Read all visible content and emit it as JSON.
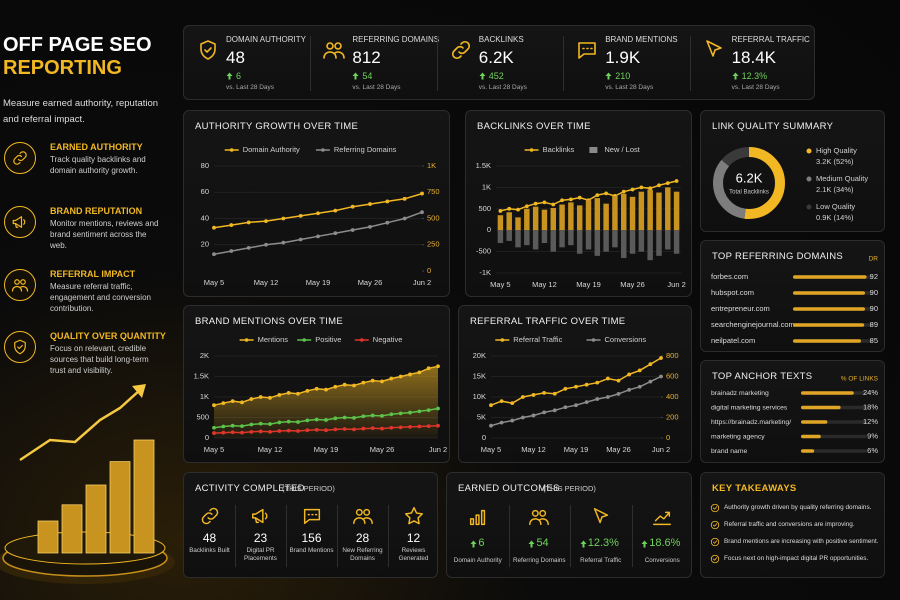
{
  "sidebar": {
    "title_line1": "OFF PAGE SEO",
    "title_line2": "REPORTING",
    "subtitle": "Measure earned authority, reputation and referral impact.",
    "items": [
      {
        "title": "EARNED AUTHORITY",
        "text": "Track quality backlinks and domain authority growth."
      },
      {
        "title": "BRAND REPUTATION",
        "text": "Monitor mentions, reviews and brand sentiment across the web."
      },
      {
        "title": "REFERRAL IMPACT",
        "text": "Measure referral traffic, engagement and conversion contribution."
      },
      {
        "title": "QUALITY OVER QUANTITY",
        "text": "Focus on relevant, credible sources that build long-term trust and visibility."
      }
    ]
  },
  "kpis": [
    {
      "label": "DOMAIN AUTHORITY",
      "value": "48",
      "change": "6",
      "period": "vs. Last 28 Days"
    },
    {
      "label": "REFERRING DOMAINS",
      "value": "812",
      "change": "54",
      "period": "vs. Last 28 Days"
    },
    {
      "label": "BACKLINKS",
      "value": "6.2K",
      "change": "452",
      "period": "vs. Last 28 Days"
    },
    {
      "label": "BRAND MENTIONS",
      "value": "1.9K",
      "change": "210",
      "period": "vs. Last 28 Days"
    },
    {
      "label": "REFERRAL TRAFFIC",
      "value": "18.4K",
      "change": "12.3%",
      "period": "vs. Last 28 Days"
    }
  ],
  "authority_chart": {
    "type": "line",
    "title": "AUTHORITY GROWTH OVER TIME",
    "legend": "top",
    "grid": true,
    "categories": [
      "May 5",
      null,
      null,
      "May 12",
      null,
      null,
      "May 19",
      null,
      null,
      "May 26",
      null,
      null,
      "Jun 2"
    ],
    "ylim": [
      0,
      80
    ],
    "yticks": [
      20,
      40,
      60,
      80
    ],
    "y2lim": [
      0,
      1000
    ],
    "y2ticks": [
      0,
      250,
      500,
      750,
      {
        "value": 1000,
        "label": "1K"
      }
    ],
    "series": [
      {
        "name": "Domain Authority",
        "color": "#f2b824",
        "values": [
          33,
          35,
          37,
          38,
          40,
          42,
          44,
          46,
          49,
          51,
          53,
          55,
          59
        ]
      },
      {
        "name": "Referring Domains",
        "color": "#8c8c8c",
        "axis": "y2",
        "values": [
          160,
          190,
          220,
          250,
          270,
          300,
          330,
          360,
          390,
          420,
          460,
          500,
          560
        ]
      }
    ]
  },
  "backlinks_chart": {
    "type": "bar",
    "title": "BACKLINKS OVER TIME",
    "legend": "top",
    "grid": true,
    "categories": [
      "May 5",
      null,
      null,
      null,
      null,
      "May 12",
      null,
      null,
      null,
      null,
      "May 19",
      null,
      null,
      null,
      null,
      "May 26",
      null,
      null,
      null,
      null,
      "Jun 2"
    ],
    "ylim": [
      -1000,
      1500
    ],
    "yticks": [
      {
        "value": -1000,
        "label": "-1K"
      },
      -500,
      0,
      500,
      {
        "value": 1000,
        "label": "1K"
      },
      {
        "value": 1500,
        "label": "1.5K"
      }
    ],
    "series": [
      {
        "name": "Backlinks",
        "type": "line",
        "color": "#f2b824",
        "values": [
          450,
          500,
          480,
          560,
          620,
          650,
          600,
          700,
          720,
          760,
          700,
          820,
          860,
          800,
          900,
          950,
          1000,
          980,
          1050,
          1100,
          1150
        ]
      },
      {
        "name": "New / Lost",
        "color": "#c99320",
        "values": [
          350,
          420,
          300,
          500,
          550,
          480,
          520,
          600,
          650,
          580,
          700,
          750,
          620,
          800,
          850,
          780,
          900,
          950,
          880,
          1000,
          900
        ]
      },
      {
        "color": "#5a5a5a",
        "values": [
          -300,
          -250,
          -400,
          -350,
          -450,
          -300,
          -500,
          -400,
          -350,
          -550,
          -450,
          -600,
          -500,
          -400,
          -650,
          -550,
          -500,
          -700,
          -600,
          -450,
          -550
        ]
      }
    ]
  },
  "mentions_chart": {
    "type": "line",
    "title": "BRAND MENTIONS OVER TIME",
    "legend": "top",
    "grid": true,
    "categories": [
      "May 5",
      null,
      null,
      null,
      null,
      null,
      "May 12",
      null,
      null,
      null,
      null,
      null,
      "May 19",
      null,
      null,
      null,
      null,
      null,
      "May 26",
      null,
      null,
      null,
      null,
      null,
      "Jun 2"
    ],
    "ylim": [
      0,
      2000
    ],
    "yticks": [
      0,
      500,
      {
        "value": 1000,
        "label": "1K"
      },
      {
        "value": 1500,
        "label": "1.5K"
      },
      {
        "value": 2000,
        "label": "2K"
      }
    ],
    "series": [
      {
        "name": "Mentions",
        "color": "#f2b824",
        "area": true,
        "values": [
          800,
          850,
          900,
          870,
          950,
          1000,
          980,
          1050,
          1100,
          1080,
          1150,
          1200,
          1180,
          1250,
          1300,
          1280,
          1350,
          1400,
          1380,
          1450,
          1500,
          1550,
          1600,
          1700,
          1750
        ]
      },
      {
        "name": "Positive",
        "color": "#5cc24a",
        "values": [
          250,
          280,
          300,
          290,
          330,
          350,
          340,
          380,
          400,
          390,
          430,
          450,
          440,
          480,
          500,
          490,
          530,
          550,
          540,
          580,
          600,
          620,
          650,
          680,
          720
        ]
      },
      {
        "name": "Negative",
        "color": "#e0352b",
        "values": [
          120,
          130,
          140,
          130,
          150,
          160,
          150,
          170,
          180,
          170,
          190,
          200,
          190,
          210,
          220,
          210,
          230,
          240,
          230,
          250,
          260,
          270,
          280,
          290,
          300
        ]
      }
    ]
  },
  "traffic_chart": {
    "type": "line",
    "title": "REFERRAL TRAFFIC OVER TIME",
    "legend": "top",
    "grid": true,
    "categories": [
      "May 5",
      null,
      null,
      null,
      "May 12",
      null,
      null,
      null,
      "May 19",
      null,
      null,
      null,
      "May 26",
      null,
      null,
      null,
      "Jun 2"
    ],
    "ylim": [
      0,
      20000
    ],
    "yticks": [
      0,
      {
        "value": 5000,
        "label": "5K"
      },
      {
        "value": 10000,
        "label": "10K"
      },
      {
        "value": 15000,
        "label": "15K"
      },
      {
        "value": 20000,
        "label": "20K"
      }
    ],
    "y2lim": [
      0,
      800
    ],
    "y2ticks": [
      0,
      200,
      400,
      600,
      800
    ],
    "series": [
      {
        "name": "Referral Traffic",
        "color": "#f2b824",
        "values": [
          8000,
          9000,
          8500,
          10000,
          10500,
          11000,
          10800,
          12000,
          12500,
          13000,
          13500,
          14500,
          14000,
          15500,
          16500,
          18000,
          19500
        ]
      },
      {
        "name": "Conversions",
        "color": "#8c8c8c",
        "axis": "y2",
        "values": [
          120,
          150,
          170,
          200,
          220,
          250,
          270,
          300,
          320,
          350,
          380,
          400,
          430,
          470,
          500,
          550,
          600
        ]
      }
    ]
  },
  "link_quality": {
    "type": "pie",
    "title": "LINK QUALITY SUMMARY",
    "center_value": "6.2K",
    "center_label": "Total Backlinks",
    "categories": [
      "High Quality",
      "Medium Quality",
      "Low Quality"
    ],
    "values": [
      52,
      34,
      14
    ],
    "value_labels": [
      "3.2K (52%)",
      "2.1K (34%)",
      "0.9K (14%)"
    ],
    "colors": [
      "#f2b824",
      "#7d7d7d",
      "#3a3a3a"
    ]
  },
  "referring_domains": {
    "type": "bar",
    "title": "TOP REFERRING DOMAINS",
    "value_header": "DR",
    "xlim": [
      0,
      100
    ],
    "color": "#e0a526",
    "categories": [
      "forbes.com",
      "hubspot.com",
      "entrepreneur.com",
      "searchenginejournal.com",
      "neilpatel.com"
    ],
    "values": [
      92,
      90,
      90,
      89,
      85
    ]
  },
  "anchor_texts": {
    "type": "bar",
    "title": "TOP ANCHOR TEXTS",
    "value_header": "% OF LINKS",
    "xlim": [
      0,
      30
    ],
    "color": "#e0a526",
    "categories": [
      "brainadz marketing",
      "digital marketing services",
      "https://brainadz.marketing/",
      "marketing agency",
      "brand name"
    ],
    "values": [
      24,
      18,
      12,
      9,
      6
    ],
    "value_labels": [
      "24%",
      "18%",
      "12%",
      "9%",
      "6%"
    ]
  },
  "activity": {
    "title": "ACTIVITY COMPLETED",
    "subtitle": "(THIS PERIOD)",
    "items": [
      {
        "value": "48",
        "label": "Backlinks Built"
      },
      {
        "value": "23",
        "label": "Digital PR Placements"
      },
      {
        "value": "156",
        "label": "Brand Mentions"
      },
      {
        "value": "28",
        "label": "New Referring Domains"
      },
      {
        "value": "12",
        "label": "Reviews Generated"
      }
    ]
  },
  "outcomes": {
    "title": "EARNED OUTCOMES",
    "subtitle": "(THIS PERIOD)",
    "items": [
      {
        "value": "6",
        "label": "Domain Authority"
      },
      {
        "value": "54",
        "label": "Referring Domains"
      },
      {
        "value": "12.3%",
        "label": "Referral Traffic"
      },
      {
        "value": "18.6%",
        "label": "Conversions"
      }
    ]
  },
  "takeaways": {
    "title": "KEY TAKEAWAYS",
    "items": [
      "Authority growth driven by quality referring domains.",
      "Referral traffic and conversions are improving.",
      "Brand mentions are increasing with positive sentiment.",
      "Focus next on high-impact digital PR opportunities."
    ]
  }
}
